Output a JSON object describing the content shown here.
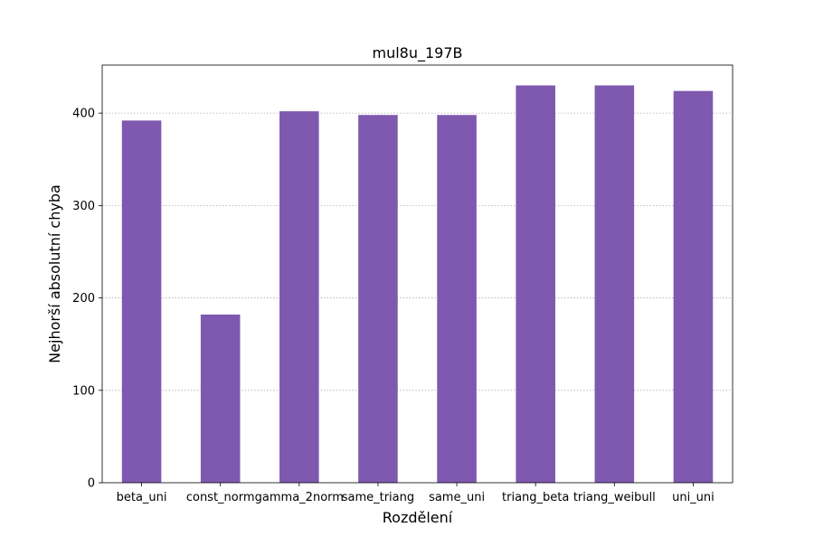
{
  "chart_data": {
    "type": "bar",
    "title": "mul8u_197B",
    "xlabel": "Rozdělení",
    "ylabel": "Nejhorší absolutní chyba",
    "categories": [
      "beta_uni",
      "const_norm",
      "gamma_2norm",
      "same_triang",
      "same_uni",
      "triang_beta",
      "triang_weibull",
      "uni_uni"
    ],
    "values": [
      392,
      182,
      402,
      398,
      398,
      430,
      430,
      424
    ],
    "ylim": [
      0,
      452
    ],
    "yticks": [
      0,
      100,
      200,
      300,
      400
    ],
    "grid": "y-dotted",
    "legend": "none",
    "bar_color": "#7e59af"
  }
}
